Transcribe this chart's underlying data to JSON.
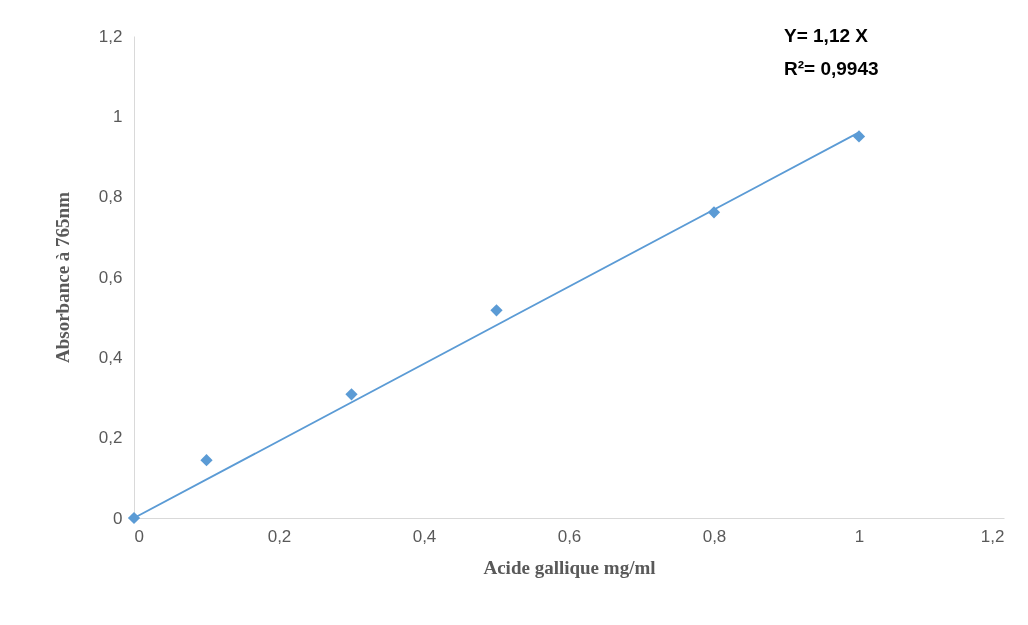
{
  "chart_data": {
    "type": "scatter",
    "xlabel": "Acide gallique mg/ml",
    "ylabel": "Absorbance à 765nm",
    "annotations": [
      "Y= 1,12 X",
      "R²= 0,9943"
    ],
    "series": [
      {
        "type": "scatter",
        "color": "#5b9bd5",
        "marker": "diamond",
        "x": [
          0,
          0.1,
          0.3,
          0.5,
          0.8,
          1
        ],
        "values": [
          0,
          0.144,
          0.308,
          0.517,
          0.761,
          0.95
        ]
      },
      {
        "type": "line",
        "color": "#5b9bd5",
        "line_style": "solid",
        "x": [
          0,
          1
        ],
        "values": [
          0,
          0.96
        ]
      }
    ],
    "xlim": [
      0,
      1.2
    ],
    "ylim": [
      0,
      1.2
    ],
    "xticks": [
      0,
      {
        "value": 0.2,
        "label": "0,2"
      },
      {
        "value": 0.4,
        "label": "0,4"
      },
      {
        "value": 0.6,
        "label": "0,6"
      },
      {
        "value": 0.8,
        "label": "0,8"
      },
      1,
      {
        "value": 1.2,
        "label": "1,2"
      }
    ],
    "yticks": [
      0,
      {
        "value": 0.2,
        "label": "0,2"
      },
      {
        "value": 0.4,
        "label": "0,4"
      },
      {
        "value": 0.6,
        "label": "0,6"
      },
      {
        "value": 0.8,
        "label": "0,8"
      },
      1,
      {
        "value": 1.2,
        "label": "1,2"
      }
    ],
    "grid": false
  }
}
